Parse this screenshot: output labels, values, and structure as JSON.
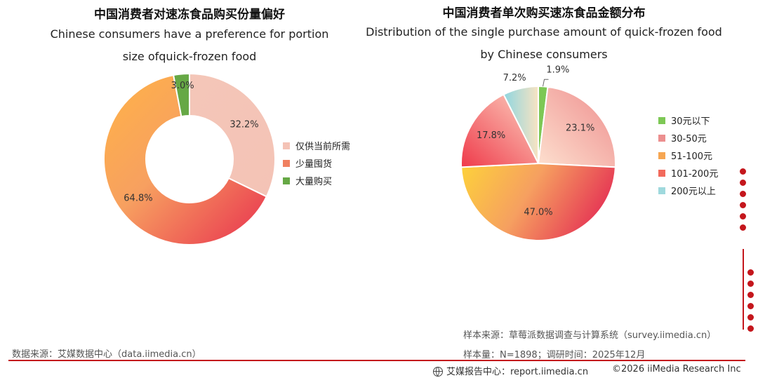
{
  "colors": {
    "accent": "#c4161c"
  },
  "chart_data": [
    {
      "type": "donut",
      "title": "中国消费者对速冻食品购买份量偏好",
      "subtitle_lines": [
        "Chinese consumers have a preference for portion",
        "size ofquick-frozen food"
      ],
      "legend_position": "right",
      "categories": [
        "仅供当前所需",
        "少量囤货",
        "大量购买"
      ],
      "values": [
        32.2,
        64.8,
        3.0
      ],
      "labels": [
        "32.2%",
        "64.8%",
        "3.0%"
      ],
      "colors": [
        "#f4c3b6",
        "#f08060",
        "#66a845"
      ]
    },
    {
      "type": "pie",
      "title": "中国消费者单次购买速冻食品金额分布",
      "subtitle_lines": [
        "Distribution of the single purchase amount of quick-frozen food",
        "by Chinese consumers"
      ],
      "legend_position": "right",
      "categories": [
        "30元以下",
        "30-50元",
        "51-100元",
        "101-200元",
        "200元以上"
      ],
      "values": [
        1.9,
        23.1,
        47.0,
        17.8,
        7.2
      ],
      "labels": [
        "1.9%",
        "23.1%",
        "47.0%",
        "17.8%",
        "7.2%"
      ],
      "colors": [
        "#7dc855",
        "#ec8f8f",
        "#f6a652",
        "#f26a5c",
        "#9fd9dd"
      ]
    }
  ],
  "footer": {
    "source_left": "数据来源：艾媒数据中心（data.iimedia.cn）",
    "sample_source": "样本来源：草莓派数据调查与计算系统（survey.iimedia.cn）",
    "sample_size": "样本量：N=1898；调研时间：2025年12月",
    "report_center": "艾媒报告中心：report.iimedia.cn",
    "copyright": "©2026  iiMedia Research  Inc"
  },
  "icons": {
    "report": "globe-icon"
  }
}
